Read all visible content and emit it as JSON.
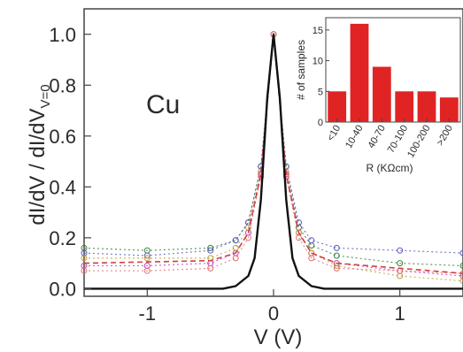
{
  "chart_data": [
    {
      "type": "line",
      "xlabel": "V (V)",
      "ylabel": "dI/dV / dI/dV",
      "ylabel_sub": "V=0",
      "xlim": [
        -1.5,
        1.5
      ],
      "ylim": [
        -0.03,
        1.1
      ],
      "x_ticks": [
        -1,
        0,
        1
      ],
      "x_tick_labels": [
        "-1",
        "0",
        "1"
      ],
      "y_ticks": [
        0.0,
        0.2,
        0.4,
        0.6,
        0.8,
        1.0
      ],
      "y_tick_labels": [
        "0.0",
        "0.2",
        "0.4",
        "0.6",
        "0.8",
        "1.0"
      ],
      "annotation": "Cu",
      "grid": false,
      "series": [
        {
          "style": "solid",
          "color": "#111111",
          "x": [
            -1.5,
            -0.4,
            -0.3,
            -0.2,
            -0.15,
            -0.1,
            -0.05,
            0,
            0.05,
            0.1,
            0.15,
            0.2,
            0.3,
            0.4,
            1.5
          ],
          "values": [
            0.0,
            0.0,
            0.01,
            0.05,
            0.12,
            0.35,
            0.75,
            1.0,
            0.75,
            0.35,
            0.12,
            0.05,
            0.01,
            0.0,
            0.0
          ]
        },
        {
          "style": "dashed",
          "color": "#d04040",
          "x": [
            -1.5,
            -0.5,
            -0.3,
            -0.2,
            -0.1,
            0,
            0.1,
            0.2,
            0.3,
            0.5,
            1.5
          ],
          "values": [
            0.1,
            0.11,
            0.14,
            0.22,
            0.45,
            1.0,
            0.45,
            0.22,
            0.14,
            0.1,
            0.06
          ]
        },
        {
          "style": "markers",
          "color": "#3a7f3a",
          "x": [
            -1.5,
            -1.0,
            -0.5,
            -0.3,
            -0.2,
            -0.1,
            0,
            0.1,
            0.2,
            0.3,
            0.5,
            1.0,
            1.5
          ],
          "values": [
            0.16,
            0.15,
            0.16,
            0.19,
            0.26,
            0.48,
            1.0,
            0.48,
            0.24,
            0.17,
            0.13,
            0.1,
            0.09
          ]
        },
        {
          "style": "markers",
          "color": "#5a5ac0",
          "x": [
            -1.5,
            -1.0,
            -0.5,
            -0.3,
            -0.2,
            -0.1,
            0,
            0.1,
            0.2,
            0.3,
            0.5,
            1.0,
            1.5
          ],
          "values": [
            0.14,
            0.13,
            0.15,
            0.19,
            0.26,
            0.48,
            1.0,
            0.48,
            0.26,
            0.19,
            0.16,
            0.15,
            0.14
          ]
        },
        {
          "style": "markers",
          "color": "#c040c0",
          "x": [
            -1.5,
            -1.0,
            -0.5,
            -0.3,
            -0.2,
            -0.1,
            0,
            0.1,
            0.2,
            0.3,
            0.5,
            1.0,
            1.5
          ],
          "values": [
            0.09,
            0.09,
            0.1,
            0.14,
            0.22,
            0.45,
            1.0,
            0.45,
            0.22,
            0.14,
            0.1,
            0.07,
            0.05
          ]
        },
        {
          "style": "markers",
          "color": "#c0a040",
          "x": [
            -1.5,
            -1.0,
            -0.5,
            -0.3,
            -0.2,
            -0.1,
            0,
            0.1,
            0.2,
            0.3,
            0.5,
            1.0,
            1.5
          ],
          "values": [
            0.12,
            0.12,
            0.12,
            0.16,
            0.24,
            0.46,
            1.0,
            0.46,
            0.22,
            0.14,
            0.09,
            0.05,
            0.03
          ]
        },
        {
          "style": "markers",
          "color": "#e07070",
          "x": [
            -1.5,
            -1.0,
            -0.5,
            -0.3,
            -0.2,
            -0.1,
            0,
            0.1,
            0.2,
            0.3,
            0.5,
            1.0,
            1.5
          ],
          "values": [
            0.07,
            0.07,
            0.08,
            0.12,
            0.2,
            0.44,
            1.0,
            0.44,
            0.2,
            0.12,
            0.08,
            0.07,
            0.06
          ]
        }
      ]
    },
    {
      "type": "bar",
      "title": "",
      "xlabel": "R (KΩcm)",
      "ylabel": "# of samples",
      "categories": [
        "<10",
        "10-40",
        "40-70",
        "70-100",
        "100-200",
        ">200"
      ],
      "values": [
        5,
        16,
        9,
        5,
        5,
        4
      ],
      "ylim": [
        0,
        17
      ],
      "y_ticks": [
        0,
        5,
        10,
        15
      ],
      "y_tick_labels": [
        "0",
        "5",
        "10",
        "15"
      ],
      "color": "#e02424"
    }
  ]
}
